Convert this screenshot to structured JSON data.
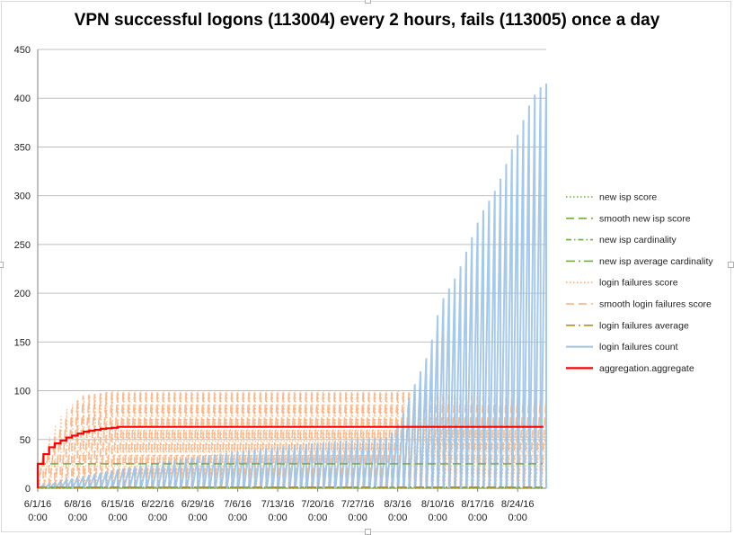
{
  "chart_data": {
    "type": "line",
    "title": "VPN successful logons (113004) every 2 hours, fails (113005) once a day",
    "xlabel": "",
    "ylabel": "",
    "ylim": [
      0,
      450
    ],
    "yticks": [
      0,
      50,
      100,
      150,
      200,
      250,
      300,
      350,
      400,
      450
    ],
    "xlim": [
      "6/1/16 0:00",
      "8/29/16 0:00"
    ],
    "xtick_labels": [
      [
        "6/1/16",
        "0:00"
      ],
      [
        "6/8/16",
        "0:00"
      ],
      [
        "6/15/16",
        "0:00"
      ],
      [
        "6/22/16",
        "0:00"
      ],
      [
        "6/29/16",
        "0:00"
      ],
      [
        "7/6/16",
        "0:00"
      ],
      [
        "7/13/16",
        "0:00"
      ],
      [
        "7/20/16",
        "0:00"
      ],
      [
        "7/27/16",
        "0:00"
      ],
      [
        "8/3/16",
        "0:00"
      ],
      [
        "8/10/16",
        "0:00"
      ],
      [
        "8/17/16",
        "0:00"
      ],
      [
        "8/24/16",
        "0:00"
      ]
    ],
    "grid": true,
    "legend_position": "right",
    "series": [
      {
        "name": "new isp score",
        "color": "#70ad47",
        "dash": "dotted",
        "constant": 0
      },
      {
        "name": "smooth new isp score",
        "color": "#70ad47",
        "dash": "long-dash",
        "constant": 25
      },
      {
        "name": "new isp cardinality",
        "color": "#70ad47",
        "dash": "dash-dot",
        "constant": 1
      },
      {
        "name": "new isp average cardinality",
        "color": "#70ad47",
        "dash": "long-dash-dot",
        "constant": 1
      },
      {
        "name": "login failures score",
        "color": "#f4b183",
        "dash": "dotted",
        "daily_peak_x": [
          "6/1/16",
          "6/2/16",
          "6/3/16",
          "6/4/16",
          "6/5/16",
          "6/6/16",
          "6/7/16",
          "6/8/16",
          "6/9/16",
          "6/10/16",
          "6/11/16",
          "6/12/16",
          "6/15/16",
          "8/2/16",
          "8/28/16"
        ],
        "daily_peak_y": [
          30,
          45,
          60,
          70,
          78,
          84,
          88,
          91,
          94,
          96,
          97,
          99,
          100,
          100,
          80
        ]
      },
      {
        "name": "smooth login failures score",
        "color": "#f4b183",
        "dash": "long-dash",
        "daily_peak_x": [
          "6/1/16",
          "6/8/16",
          "6/15/16",
          "8/2/16",
          "8/28/16"
        ],
        "daily_peak_y": [
          30,
          95,
          100,
          100,
          90
        ]
      },
      {
        "name": "login failures average",
        "color": "#bf9000",
        "dash": "long-dash-dot",
        "constant": 1
      },
      {
        "name": "login failures count",
        "color": "#9dc3e6",
        "dash": "solid",
        "daily_peak_x": [
          "6/1/16",
          "6/8/16",
          "6/15/16",
          "6/22/16",
          "6/29/16",
          "7/6/16",
          "7/13/16",
          "7/20/16",
          "7/27/16",
          "8/1/16",
          "8/3/16",
          "8/5/16",
          "8/8/16",
          "8/10/16",
          "8/13/16",
          "8/15/16",
          "8/17/16",
          "8/20/16",
          "8/22/16",
          "8/24/16",
          "8/26/16",
          "8/28/16"
        ],
        "daily_peak_y": [
          2,
          12,
          20,
          27,
          33,
          38,
          43,
          47,
          50,
          52,
          70,
          100,
          140,
          190,
          220,
          250,
          280,
          310,
          340,
          370,
          400,
          415
        ]
      },
      {
        "name": "aggregation.aggregate",
        "color": "#ff0000",
        "dash": "solid",
        "step_x": [
          "6/1/16",
          "6/2/16",
          "6/3/16",
          "6/4/16",
          "6/5/16",
          "6/6/16",
          "6/7/16",
          "6/8/16",
          "6/9/16",
          "6/10/16",
          "6/11/16",
          "6/12/16",
          "6/13/16",
          "6/14/16",
          "6/15/16",
          "8/28/16"
        ],
        "step_y": [
          25,
          35,
          42,
          46,
          49,
          52,
          54,
          56,
          58,
          59,
          60,
          61,
          61.5,
          62,
          63,
          63
        ]
      }
    ]
  }
}
